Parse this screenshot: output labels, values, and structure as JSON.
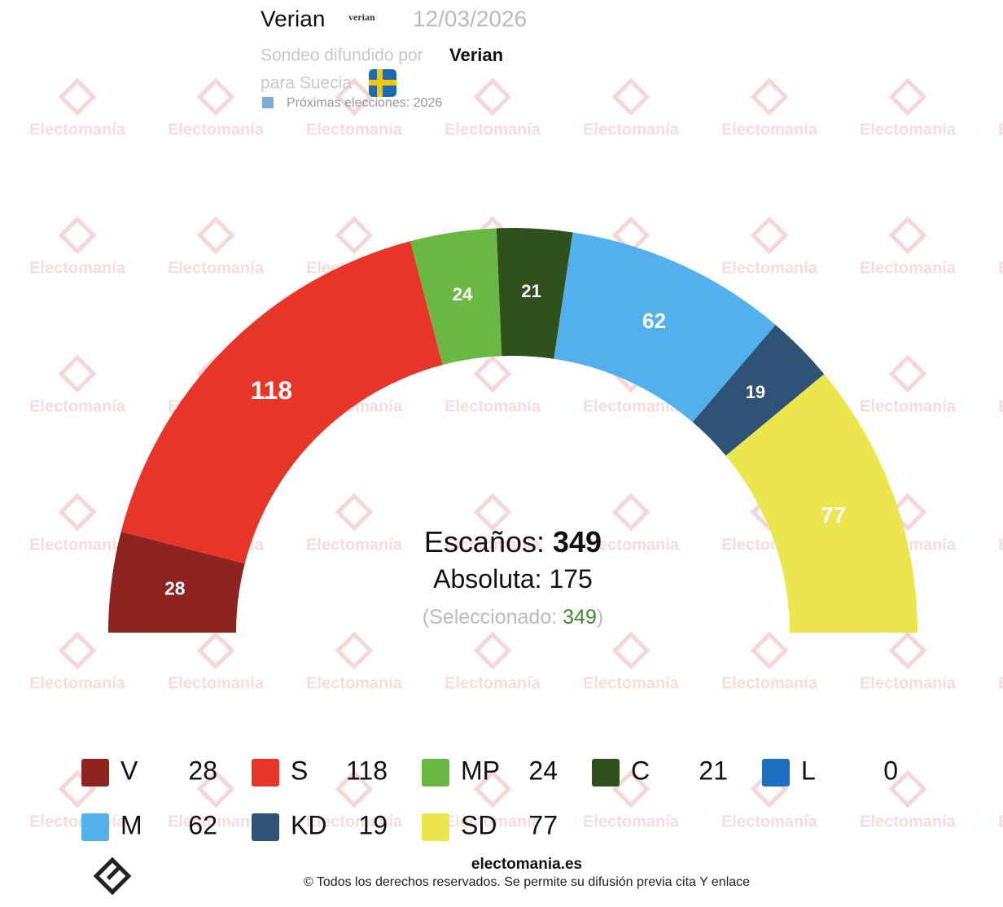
{
  "header": {
    "title": "Verian",
    "logo_text": "verian",
    "date": "12/03/2026",
    "source_label": "Sondeo difundido por",
    "source": "Verian",
    "country_label": "para Suecia",
    "next_elections": "Próximas elecciones: 2026"
  },
  "chart_data": {
    "type": "hemicycle",
    "categories": [
      "V",
      "S",
      "MP",
      "C",
      "L",
      "M",
      "KD",
      "SD"
    ],
    "values": [
      28,
      118,
      24,
      21,
      0,
      62,
      19,
      77
    ],
    "colors": [
      "#8e2420",
      "#e8352a",
      "#6ab843",
      "#2f521c",
      "#1f6fc0",
      "#52b1ec",
      "#2e5377",
      "#ebe64d"
    ],
    "total_label": "Escaños:",
    "total": 349,
    "majority_label": "Absoluta:",
    "majority": 175,
    "selected_label": "(Seleccionado:",
    "selected": 349,
    "selected_close": ")"
  },
  "watermark": "Electomanía",
  "footer": {
    "site": "electomania.es",
    "copyright": "© Todos los derechos reservados. Se permite su difusión previa cita Y enlace"
  }
}
